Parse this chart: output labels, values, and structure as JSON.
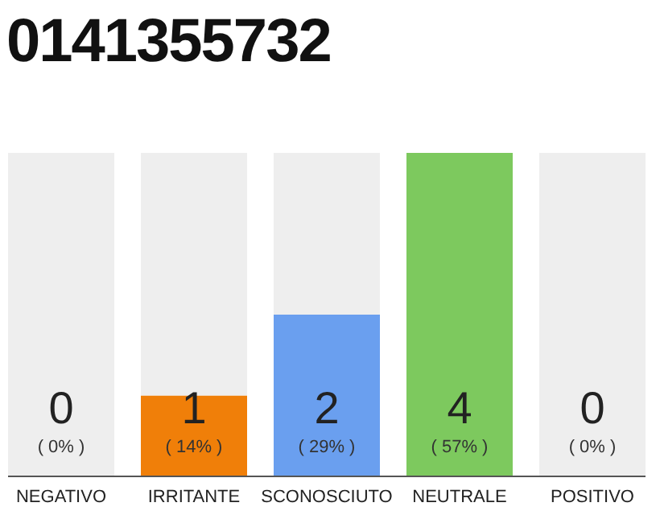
{
  "chart_data": {
    "type": "bar",
    "title": "0141355732",
    "stacked": true,
    "categories": [
      "NEGATIVO",
      "IRRITANTE",
      "SCONOSCIUTO",
      "NEUTRALE",
      "POSITIVO"
    ],
    "series": [
      {
        "colors": [
          "#eeeeee",
          "#f07f09",
          "#6a9fef",
          "#7dc95e",
          "#eeeeee"
        ],
        "values": [
          0,
          1,
          2,
          4,
          0
        ],
        "value_labels": [
          null,
          "1",
          "2",
          "4",
          null
        ]
      },
      {
        "color": "#eeeeee",
        "values": [
          4,
          3,
          2,
          0,
          4
        ]
      }
    ],
    "annotations": [
      "( 0% )",
      "( 14% )",
      "( 29% )",
      "( 57% )",
      "( 0% )",
      {
        "text": "0",
        "x": "NEGATIVO",
        "y": 0
      },
      {
        "text": "0",
        "x": "POSITIVO",
        "y": 0
      }
    ]
  }
}
